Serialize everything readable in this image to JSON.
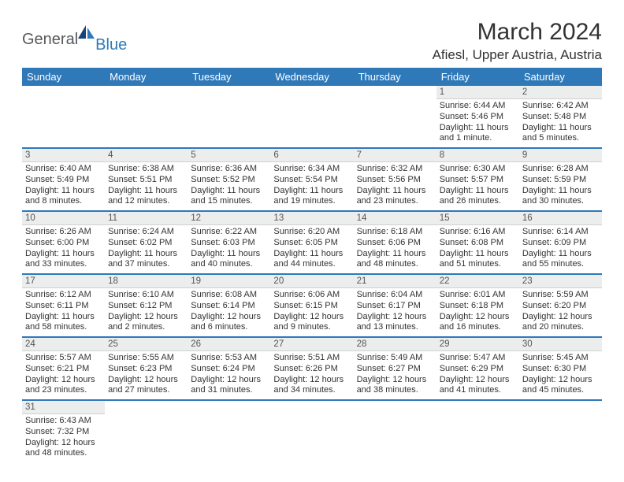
{
  "brand": {
    "part1": "General",
    "part2": "Blue"
  },
  "title": "March 2024",
  "location": "Afiesl, Upper Austria, Austria",
  "colors": {
    "header_bg": "#2f79b9",
    "header_text": "#ffffff",
    "daynum_bg": "#eceded",
    "row_divider": "#2f79b9",
    "logo_gray": "#58595b",
    "logo_blue": "#2f79b9"
  },
  "day_headers": [
    "Sunday",
    "Monday",
    "Tuesday",
    "Wednesday",
    "Thursday",
    "Friday",
    "Saturday"
  ],
  "weeks": [
    [
      null,
      null,
      null,
      null,
      null,
      {
        "n": "1",
        "sr": "Sunrise: 6:44 AM",
        "ss": "Sunset: 5:46 PM",
        "dl1": "Daylight: 11 hours",
        "dl2": "and 1 minute."
      },
      {
        "n": "2",
        "sr": "Sunrise: 6:42 AM",
        "ss": "Sunset: 5:48 PM",
        "dl1": "Daylight: 11 hours",
        "dl2": "and 5 minutes."
      }
    ],
    [
      {
        "n": "3",
        "sr": "Sunrise: 6:40 AM",
        "ss": "Sunset: 5:49 PM",
        "dl1": "Daylight: 11 hours",
        "dl2": "and 8 minutes."
      },
      {
        "n": "4",
        "sr": "Sunrise: 6:38 AM",
        "ss": "Sunset: 5:51 PM",
        "dl1": "Daylight: 11 hours",
        "dl2": "and 12 minutes."
      },
      {
        "n": "5",
        "sr": "Sunrise: 6:36 AM",
        "ss": "Sunset: 5:52 PM",
        "dl1": "Daylight: 11 hours",
        "dl2": "and 15 minutes."
      },
      {
        "n": "6",
        "sr": "Sunrise: 6:34 AM",
        "ss": "Sunset: 5:54 PM",
        "dl1": "Daylight: 11 hours",
        "dl2": "and 19 minutes."
      },
      {
        "n": "7",
        "sr": "Sunrise: 6:32 AM",
        "ss": "Sunset: 5:56 PM",
        "dl1": "Daylight: 11 hours",
        "dl2": "and 23 minutes."
      },
      {
        "n": "8",
        "sr": "Sunrise: 6:30 AM",
        "ss": "Sunset: 5:57 PM",
        "dl1": "Daylight: 11 hours",
        "dl2": "and 26 minutes."
      },
      {
        "n": "9",
        "sr": "Sunrise: 6:28 AM",
        "ss": "Sunset: 5:59 PM",
        "dl1": "Daylight: 11 hours",
        "dl2": "and 30 minutes."
      }
    ],
    [
      {
        "n": "10",
        "sr": "Sunrise: 6:26 AM",
        "ss": "Sunset: 6:00 PM",
        "dl1": "Daylight: 11 hours",
        "dl2": "and 33 minutes."
      },
      {
        "n": "11",
        "sr": "Sunrise: 6:24 AM",
        "ss": "Sunset: 6:02 PM",
        "dl1": "Daylight: 11 hours",
        "dl2": "and 37 minutes."
      },
      {
        "n": "12",
        "sr": "Sunrise: 6:22 AM",
        "ss": "Sunset: 6:03 PM",
        "dl1": "Daylight: 11 hours",
        "dl2": "and 40 minutes."
      },
      {
        "n": "13",
        "sr": "Sunrise: 6:20 AM",
        "ss": "Sunset: 6:05 PM",
        "dl1": "Daylight: 11 hours",
        "dl2": "and 44 minutes."
      },
      {
        "n": "14",
        "sr": "Sunrise: 6:18 AM",
        "ss": "Sunset: 6:06 PM",
        "dl1": "Daylight: 11 hours",
        "dl2": "and 48 minutes."
      },
      {
        "n": "15",
        "sr": "Sunrise: 6:16 AM",
        "ss": "Sunset: 6:08 PM",
        "dl1": "Daylight: 11 hours",
        "dl2": "and 51 minutes."
      },
      {
        "n": "16",
        "sr": "Sunrise: 6:14 AM",
        "ss": "Sunset: 6:09 PM",
        "dl1": "Daylight: 11 hours",
        "dl2": "and 55 minutes."
      }
    ],
    [
      {
        "n": "17",
        "sr": "Sunrise: 6:12 AM",
        "ss": "Sunset: 6:11 PM",
        "dl1": "Daylight: 11 hours",
        "dl2": "and 58 minutes."
      },
      {
        "n": "18",
        "sr": "Sunrise: 6:10 AM",
        "ss": "Sunset: 6:12 PM",
        "dl1": "Daylight: 12 hours",
        "dl2": "and 2 minutes."
      },
      {
        "n": "19",
        "sr": "Sunrise: 6:08 AM",
        "ss": "Sunset: 6:14 PM",
        "dl1": "Daylight: 12 hours",
        "dl2": "and 6 minutes."
      },
      {
        "n": "20",
        "sr": "Sunrise: 6:06 AM",
        "ss": "Sunset: 6:15 PM",
        "dl1": "Daylight: 12 hours",
        "dl2": "and 9 minutes."
      },
      {
        "n": "21",
        "sr": "Sunrise: 6:04 AM",
        "ss": "Sunset: 6:17 PM",
        "dl1": "Daylight: 12 hours",
        "dl2": "and 13 minutes."
      },
      {
        "n": "22",
        "sr": "Sunrise: 6:01 AM",
        "ss": "Sunset: 6:18 PM",
        "dl1": "Daylight: 12 hours",
        "dl2": "and 16 minutes."
      },
      {
        "n": "23",
        "sr": "Sunrise: 5:59 AM",
        "ss": "Sunset: 6:20 PM",
        "dl1": "Daylight: 12 hours",
        "dl2": "and 20 minutes."
      }
    ],
    [
      {
        "n": "24",
        "sr": "Sunrise: 5:57 AM",
        "ss": "Sunset: 6:21 PM",
        "dl1": "Daylight: 12 hours",
        "dl2": "and 23 minutes."
      },
      {
        "n": "25",
        "sr": "Sunrise: 5:55 AM",
        "ss": "Sunset: 6:23 PM",
        "dl1": "Daylight: 12 hours",
        "dl2": "and 27 minutes."
      },
      {
        "n": "26",
        "sr": "Sunrise: 5:53 AM",
        "ss": "Sunset: 6:24 PM",
        "dl1": "Daylight: 12 hours",
        "dl2": "and 31 minutes."
      },
      {
        "n": "27",
        "sr": "Sunrise: 5:51 AM",
        "ss": "Sunset: 6:26 PM",
        "dl1": "Daylight: 12 hours",
        "dl2": "and 34 minutes."
      },
      {
        "n": "28",
        "sr": "Sunrise: 5:49 AM",
        "ss": "Sunset: 6:27 PM",
        "dl1": "Daylight: 12 hours",
        "dl2": "and 38 minutes."
      },
      {
        "n": "29",
        "sr": "Sunrise: 5:47 AM",
        "ss": "Sunset: 6:29 PM",
        "dl1": "Daylight: 12 hours",
        "dl2": "and 41 minutes."
      },
      {
        "n": "30",
        "sr": "Sunrise: 5:45 AM",
        "ss": "Sunset: 6:30 PM",
        "dl1": "Daylight: 12 hours",
        "dl2": "and 45 minutes."
      }
    ],
    [
      {
        "n": "31",
        "sr": "Sunrise: 6:43 AM",
        "ss": "Sunset: 7:32 PM",
        "dl1": "Daylight: 12 hours",
        "dl2": "and 48 minutes."
      },
      null,
      null,
      null,
      null,
      null,
      null
    ]
  ]
}
